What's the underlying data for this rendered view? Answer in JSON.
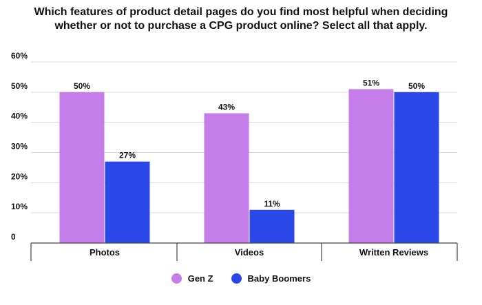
{
  "chart_data": {
    "type": "bar",
    "title": "Which features of product detail pages do you find most helpful when deciding whether or not to purchase a CPG product online? Select all that apply.",
    "categories": [
      "Photos",
      "Videos",
      "Written Reviews"
    ],
    "series": [
      {
        "name": "Gen Z",
        "color": "#c47de9",
        "values": [
          50,
          43,
          51
        ],
        "labels": [
          "50%",
          "43%",
          "51%"
        ]
      },
      {
        "name": "Baby Boomers",
        "color": "#2a47e8",
        "values": [
          27,
          11,
          50
        ],
        "labels": [
          "27%",
          "11%",
          "50%"
        ]
      }
    ],
    "yticks": [
      {
        "value": 0,
        "label": "0"
      },
      {
        "value": 10,
        "label": "10%"
      },
      {
        "value": 20,
        "label": "20%"
      },
      {
        "value": 30,
        "label": "30%"
      },
      {
        "value": 40,
        "label": "40%"
      },
      {
        "value": 50,
        "label": "50%"
      },
      {
        "value": 60,
        "label": "60%"
      }
    ],
    "ylim": [
      0,
      60
    ],
    "xlabel": "",
    "ylabel": "",
    "grid": true,
    "legend_position": "bottom"
  }
}
